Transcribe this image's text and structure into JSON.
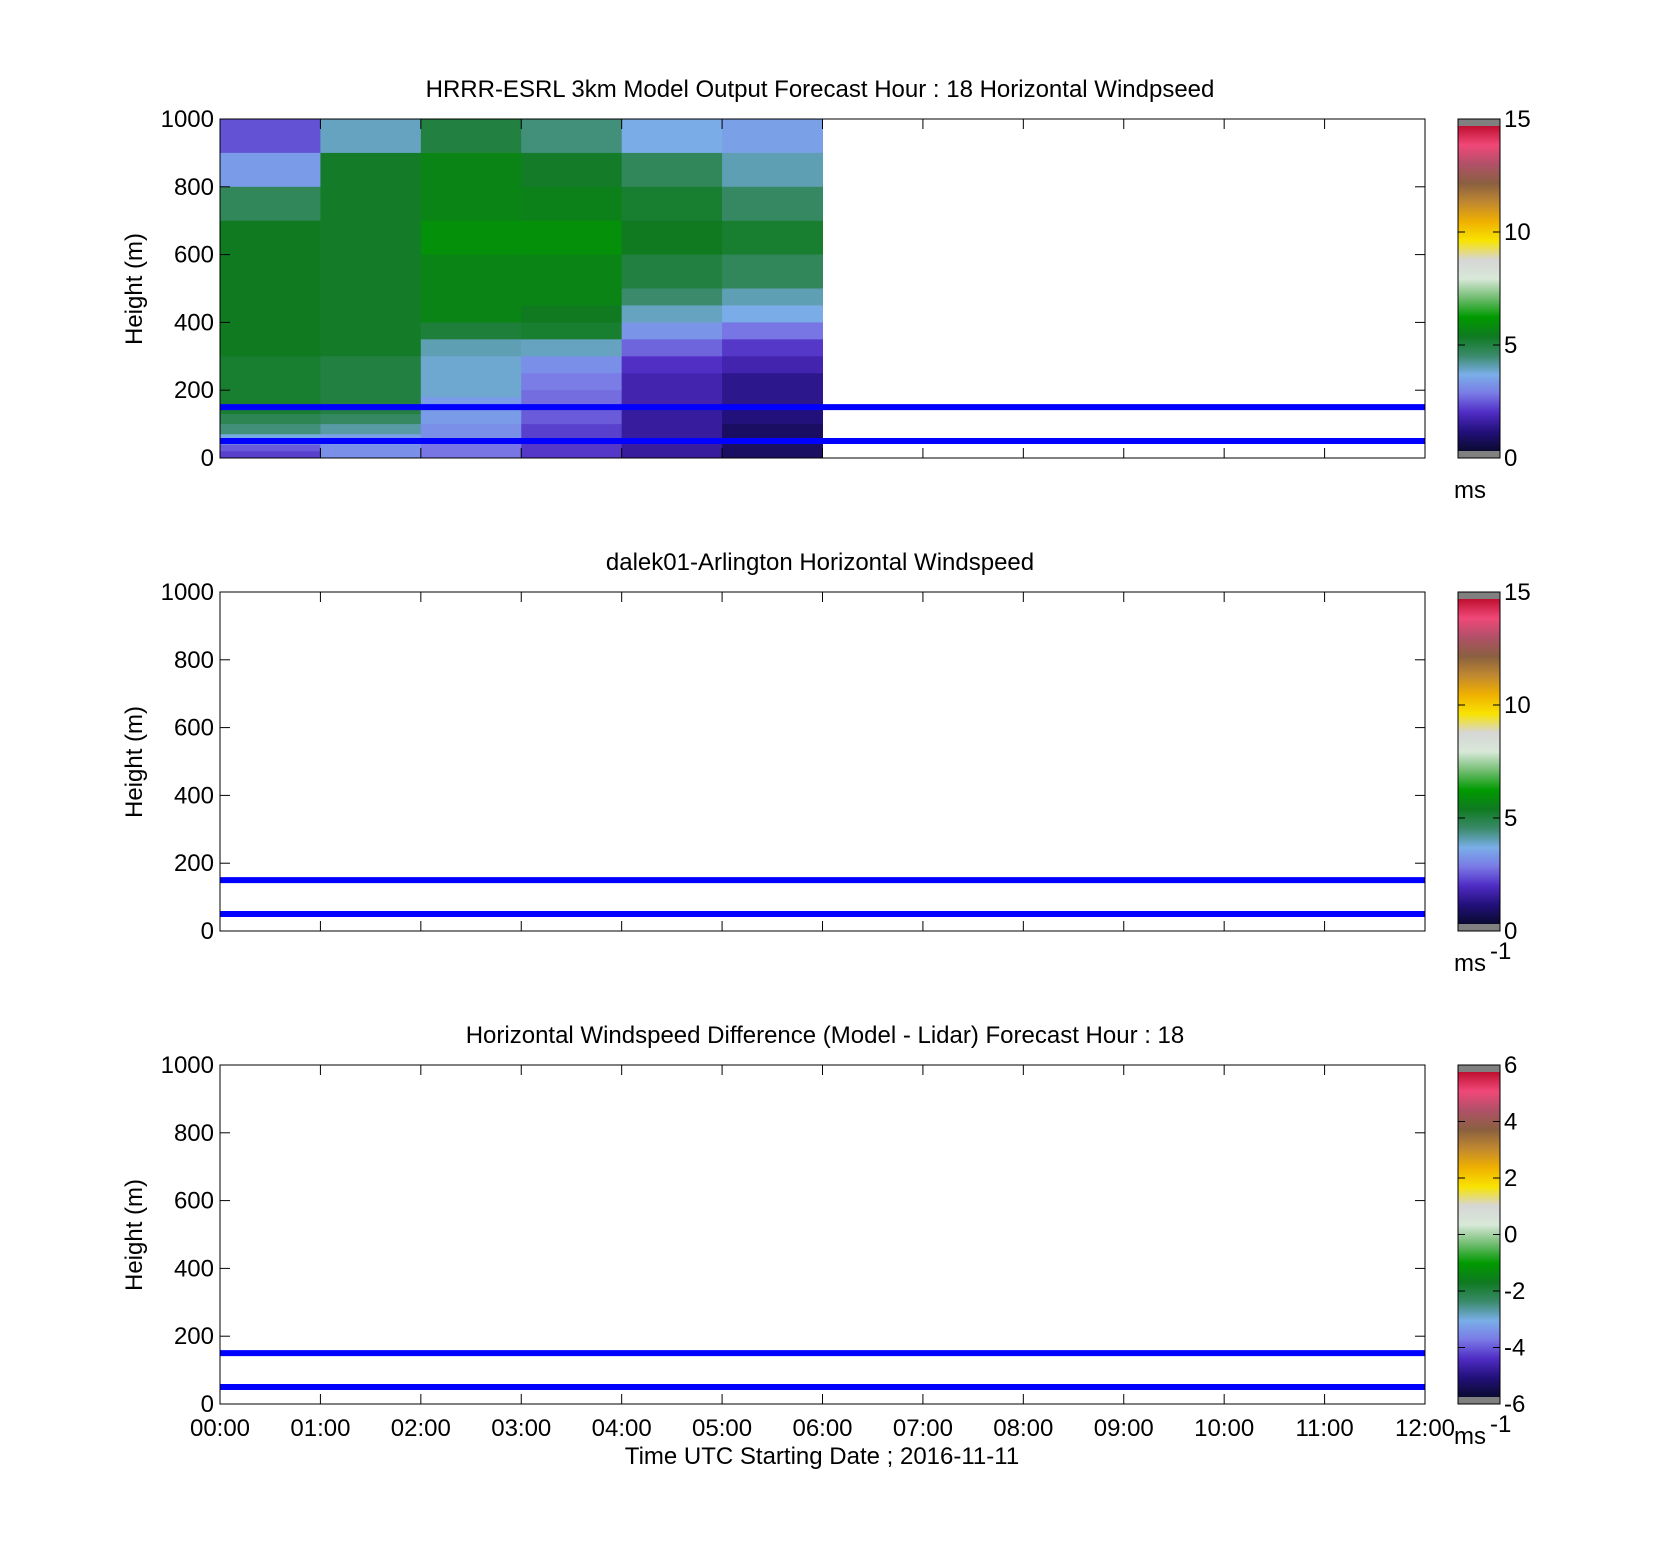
{
  "chart_data": [
    {
      "type": "heatmap",
      "title": "HRRR-ESRL 3km Model Output   Forecast Hour : 18 Horizontal Windpseed",
      "ylabel": "Height (m)",
      "ylim": [
        0,
        1000
      ],
      "yticks": [
        "0",
        "200",
        "400",
        "600",
        "800",
        "1000"
      ],
      "xlim": [
        0,
        12
      ],
      "xticks": [
        "00:00",
        "01:00",
        "02:00",
        "03:00",
        "04:00",
        "05:00",
        "06:00",
        "07:00",
        "08:00",
        "09:00",
        "10:00",
        "11:00",
        "12:00"
      ],
      "show_xtick_labels": false,
      "colorbar": {
        "range": [
          0,
          15
        ],
        "ticks": [
          "0",
          "5",
          "10",
          "15"
        ],
        "unit": "ms",
        "unit_sup": ""
      },
      "hlines": [
        50,
        150
      ],
      "cell_columns": [
        {
          "x0": 0,
          "x1": 1,
          "cells": [
            {
              "y0": 900,
              "y1": 1000,
              "v": 2.2
            },
            {
              "y0": 800,
              "y1": 900,
              "v": 3.2
            },
            {
              "y0": 700,
              "y1": 800,
              "v": 4.6
            },
            {
              "y0": 300,
              "y1": 700,
              "v": 5.3
            },
            {
              "y0": 130,
              "y1": 300,
              "v": 5.1
            },
            {
              "y0": 100,
              "y1": 130,
              "v": 4.7
            },
            {
              "y0": 70,
              "y1": 100,
              "v": 4.3
            },
            {
              "y0": 40,
              "y1": 70,
              "v": 3.6
            },
            {
              "y0": 20,
              "y1": 40,
              "v": 2.3
            },
            {
              "y0": 0,
              "y1": 20,
              "v": 2.0
            }
          ]
        },
        {
          "x0": 1,
          "x1": 2,
          "cells": [
            {
              "y0": 900,
              "y1": 1000,
              "v": 3.8
            },
            {
              "y0": 300,
              "y1": 900,
              "v": 5.2
            },
            {
              "y0": 130,
              "y1": 300,
              "v": 4.9
            },
            {
              "y0": 100,
              "y1": 130,
              "v": 4.5
            },
            {
              "y0": 70,
              "y1": 100,
              "v": 4.0
            },
            {
              "y0": 40,
              "y1": 70,
              "v": 3.3
            },
            {
              "y0": 0,
              "y1": 40,
              "v": 3.0
            }
          ]
        },
        {
          "x0": 2,
          "x1": 3,
          "cells": [
            {
              "y0": 900,
              "y1": 1000,
              "v": 4.9
            },
            {
              "y0": 700,
              "y1": 900,
              "v": 5.6
            },
            {
              "y0": 600,
              "y1": 700,
              "v": 5.9
            },
            {
              "y0": 400,
              "y1": 600,
              "v": 5.6
            },
            {
              "y0": 350,
              "y1": 400,
              "v": 5.0
            },
            {
              "y0": 300,
              "y1": 350,
              "v": 3.9
            },
            {
              "y0": 180,
              "y1": 300,
              "v": 3.7
            },
            {
              "y0": 100,
              "y1": 180,
              "v": 3.2
            },
            {
              "y0": 50,
              "y1": 100,
              "v": 3.0
            },
            {
              "y0": 0,
              "y1": 50,
              "v": 2.6
            }
          ]
        },
        {
          "x0": 3,
          "x1": 4,
          "cells": [
            {
              "y0": 900,
              "y1": 1000,
              "v": 4.3
            },
            {
              "y0": 800,
              "y1": 900,
              "v": 5.2
            },
            {
              "y0": 700,
              "y1": 800,
              "v": 5.5
            },
            {
              "y0": 600,
              "y1": 700,
              "v": 5.9
            },
            {
              "y0": 450,
              "y1": 600,
              "v": 5.6
            },
            {
              "y0": 400,
              "y1": 450,
              "v": 5.3
            },
            {
              "y0": 350,
              "y1": 400,
              "v": 5.1
            },
            {
              "y0": 300,
              "y1": 350,
              "v": 3.8
            },
            {
              "y0": 250,
              "y1": 300,
              "v": 3.0
            },
            {
              "y0": 200,
              "y1": 250,
              "v": 2.7
            },
            {
              "y0": 150,
              "y1": 200,
              "v": 2.5
            },
            {
              "y0": 100,
              "y1": 150,
              "v": 2.3
            },
            {
              "y0": 50,
              "y1": 100,
              "v": 2.0
            },
            {
              "y0": 0,
              "y1": 50,
              "v": 1.9
            }
          ]
        },
        {
          "x0": 4,
          "x1": 5,
          "cells": [
            {
              "y0": 900,
              "y1": 1000,
              "v": 3.5
            },
            {
              "y0": 800,
              "y1": 900,
              "v": 4.6
            },
            {
              "y0": 700,
              "y1": 800,
              "v": 5.1
            },
            {
              "y0": 600,
              "y1": 700,
              "v": 5.3
            },
            {
              "y0": 500,
              "y1": 600,
              "v": 4.9
            },
            {
              "y0": 450,
              "y1": 500,
              "v": 4.4
            },
            {
              "y0": 400,
              "y1": 450,
              "v": 3.8
            },
            {
              "y0": 350,
              "y1": 400,
              "v": 3.1
            },
            {
              "y0": 300,
              "y1": 350,
              "v": 2.4
            },
            {
              "y0": 250,
              "y1": 300,
              "v": 1.8
            },
            {
              "y0": 150,
              "y1": 250,
              "v": 1.5
            },
            {
              "y0": 0,
              "y1": 150,
              "v": 1.3
            }
          ]
        },
        {
          "x0": 5,
          "x1": 6,
          "cells": [
            {
              "y0": 900,
              "y1": 1000,
              "v": 3.3
            },
            {
              "y0": 800,
              "y1": 900,
              "v": 3.9
            },
            {
              "y0": 700,
              "y1": 800,
              "v": 4.5
            },
            {
              "y0": 600,
              "y1": 700,
              "v": 5.1
            },
            {
              "y0": 500,
              "y1": 600,
              "v": 4.6
            },
            {
              "y0": 450,
              "y1": 500,
              "v": 3.9
            },
            {
              "y0": 400,
              "y1": 450,
              "v": 3.5
            },
            {
              "y0": 350,
              "y1": 400,
              "v": 2.6
            },
            {
              "y0": 300,
              "y1": 350,
              "v": 1.9
            },
            {
              "y0": 250,
              "y1": 300,
              "v": 1.5
            },
            {
              "y0": 150,
              "y1": 250,
              "v": 1.1
            },
            {
              "y0": 100,
              "y1": 150,
              "v": 0.9
            },
            {
              "y0": 0,
              "y1": 100,
              "v": 0.6
            }
          ]
        }
      ]
    },
    {
      "type": "heatmap",
      "title": "dalek01-Arlington  Horizontal Windspeed",
      "ylabel": "Height (m)",
      "ylim": [
        0,
        1000
      ],
      "yticks": [
        "0",
        "200",
        "400",
        "600",
        "800",
        "1000"
      ],
      "xlim": [
        0,
        12
      ],
      "xticks": [
        "00:00",
        "01:00",
        "02:00",
        "03:00",
        "04:00",
        "05:00",
        "06:00",
        "07:00",
        "08:00",
        "09:00",
        "10:00",
        "11:00",
        "12:00"
      ],
      "show_xtick_labels": false,
      "colorbar": {
        "range": [
          0,
          15
        ],
        "ticks": [
          "0",
          "5",
          "10",
          "15"
        ],
        "unit": "ms",
        "unit_sup": "-1"
      },
      "hlines": [
        50,
        150
      ],
      "cell_columns": []
    },
    {
      "type": "heatmap",
      "title": "Horizontal Windspeed Difference (Model - Lidar) Forecast Hour : 18",
      "ylabel": "Height (m)",
      "xlabel": "Time UTC  Starting Date ; 2016-11-11",
      "ylim": [
        0,
        1000
      ],
      "yticks": [
        "0",
        "200",
        "400",
        "600",
        "800",
        "1000"
      ],
      "xlim": [
        0,
        12
      ],
      "xticks": [
        "00:00",
        "01:00",
        "02:00",
        "03:00",
        "04:00",
        "05:00",
        "06:00",
        "07:00",
        "08:00",
        "09:00",
        "10:00",
        "11:00",
        "12:00"
      ],
      "show_xtick_labels": true,
      "colorbar": {
        "range": [
          -6,
          6
        ],
        "ticks": [
          "-6",
          "-4",
          "-2",
          "0",
          "2",
          "4",
          "6"
        ],
        "unit": "ms",
        "unit_sup": "-1"
      },
      "hlines": [
        50,
        150
      ],
      "cell_columns": []
    }
  ],
  "colormap_stops": [
    "#0a0a30",
    "#22107a",
    "#4f2cc4",
    "#7a7ae6",
    "#7aaee8",
    "#3a8a6a",
    "#0f7a20",
    "#009a00",
    "#70bc70",
    "#d8e8d8",
    "#d6d6d6",
    "#f8e400",
    "#f0b000",
    "#c08830",
    "#8a6040",
    "#b05068",
    "#f04878",
    "#c01030"
  ],
  "colors": {
    "hline": "#0000ff",
    "outofrange": "#808080"
  }
}
